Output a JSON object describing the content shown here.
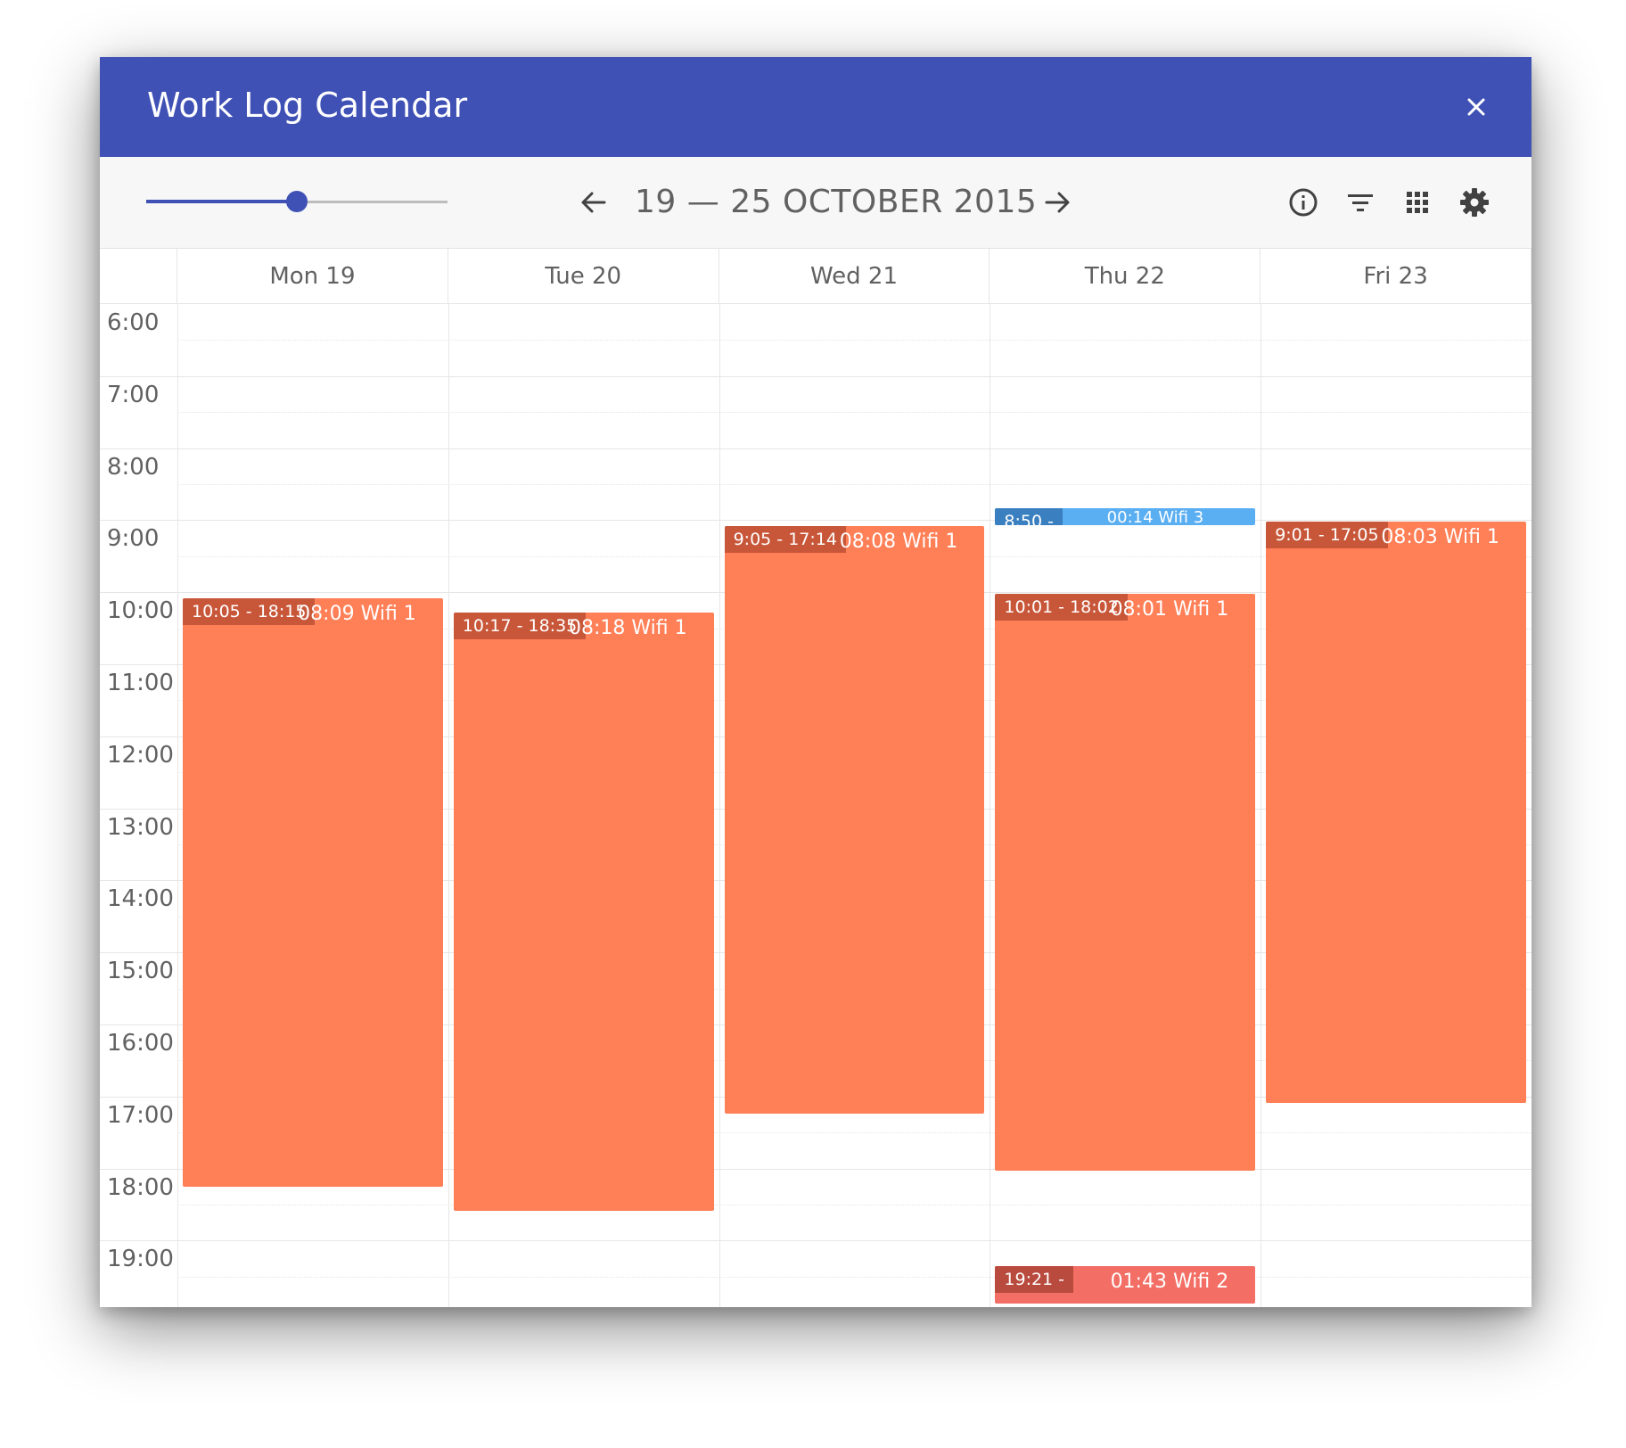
{
  "window": {
    "title": "Work Log Calendar",
    "close_icon": "close-icon"
  },
  "toolbar": {
    "zoom_slider_value": 0.5,
    "prev_icon": "arrow-left-icon",
    "range_label": "19 — 25 OCTOBER 2015",
    "next_icon": "arrow-right-icon",
    "info_icon": "info-icon",
    "filter_icon": "filter-icon",
    "apps_icon": "grid-icon",
    "settings_icon": "gear-icon"
  },
  "colors": {
    "header": "#3f51b5",
    "accent": "#3f51b5",
    "event_wifi1": "#ff7f57",
    "event_wifi3": "#5aaef2",
    "event_wifi2": "#f36e64"
  },
  "calendar": {
    "days": [
      {
        "label": "Mon 19"
      },
      {
        "label": "Tue 20"
      },
      {
        "label": "Wed 21"
      },
      {
        "label": "Thu 22"
      },
      {
        "label": "Fri 23"
      }
    ],
    "hours": [
      "6:00",
      "7:00",
      "8:00",
      "9:00",
      "10:00",
      "11:00",
      "12:00",
      "13:00",
      "14:00",
      "15:00",
      "16:00",
      "17:00",
      "18:00",
      "19:00"
    ],
    "events": [
      {
        "day": 0,
        "start": "10:05",
        "end": "18:15",
        "time_label": "10:05 - 18:15",
        "label": "08:09 Wifi 1",
        "color": "orange"
      },
      {
        "day": 1,
        "start": "10:17",
        "end": "18:35",
        "time_label": "10:17 - 18:35",
        "label": "08:18 Wifi 1",
        "color": "orange"
      },
      {
        "day": 2,
        "start": "9:05",
        "end": "17:14",
        "time_label": "9:05 - 17:14",
        "label": "08:08 Wifi 1",
        "color": "orange"
      },
      {
        "day": 3,
        "start": "8:50",
        "end": "9:04",
        "time_label": "8:50 -",
        "label": "00:14 Wifi 3",
        "color": "blue"
      },
      {
        "day": 3,
        "start": "10:01",
        "end": "18:02",
        "time_label": "10:01 - 18:02",
        "label": "08:01 Wifi 1",
        "color": "orange"
      },
      {
        "day": 3,
        "start": "19:21",
        "end": "21:04",
        "time_label": "19:21 -",
        "label": "01:43 Wifi 2",
        "color": "salmon"
      },
      {
        "day": 4,
        "start": "9:01",
        "end": "17:05",
        "time_label": "9:01 - 17:05",
        "label": "08:03 Wifi 1",
        "color": "orange"
      }
    ]
  }
}
